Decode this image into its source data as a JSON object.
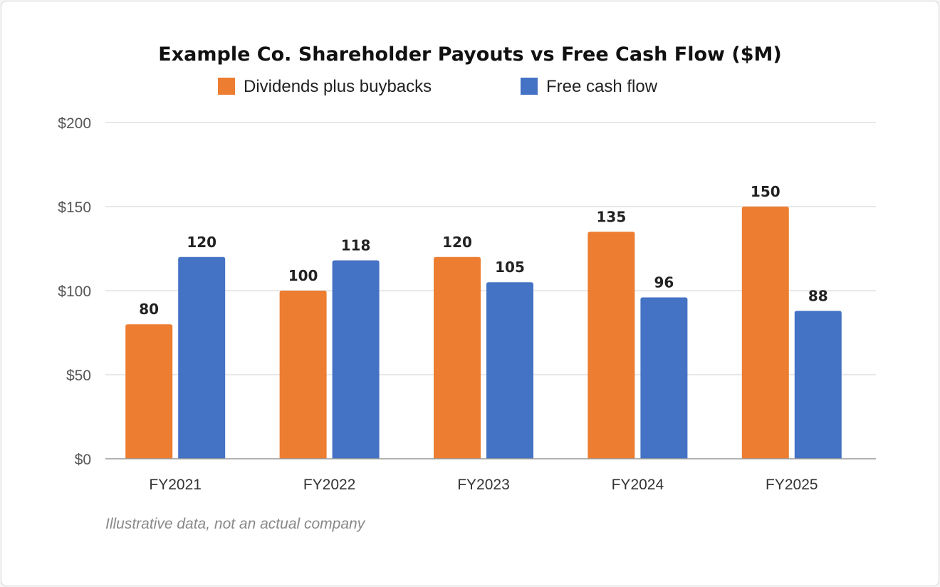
{
  "chart_data": {
    "type": "bar",
    "title": "Example Co. Shareholder Payouts vs Free Cash Flow ($M)",
    "categories": [
      "FY2021",
      "FY2022",
      "FY2023",
      "FY2024",
      "FY2025"
    ],
    "series": [
      {
        "name": "Dividends plus buybacks",
        "values": [
          80,
          100,
          120,
          135,
          150
        ],
        "color": "#ed7d31"
      },
      {
        "name": "Free cash flow",
        "values": [
          120,
          118,
          105,
          96,
          88
        ],
        "color": "#4472c4"
      }
    ],
    "xlabel": "",
    "ylabel": "",
    "ylim": [
      0,
      200
    ],
    "yticks": [
      0,
      50,
      100,
      150,
      200
    ],
    "ytick_labels": [
      "$0",
      "$50",
      "$100",
      "$150",
      "$200"
    ],
    "grid": true,
    "legend_position": "top",
    "data_labels": true,
    "footnote": "Illustrative data, not an actual company"
  }
}
